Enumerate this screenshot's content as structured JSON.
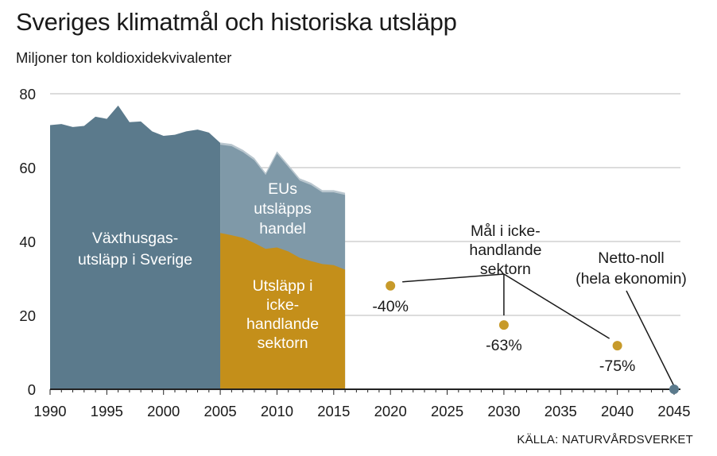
{
  "title": "Sveriges klimatmål och historiska utsläpp",
  "subtitle": "Miljoner ton koldioxidekvivalenter",
  "source": "KÄLLA: NATURVÅRDSVERKET",
  "chart_data": {
    "type": "area",
    "ylim": [
      0,
      80
    ],
    "xlim": [
      1990,
      2045
    ],
    "grid": true,
    "y_ticks": [
      0,
      20,
      40,
      60,
      80
    ],
    "x_ticks": [
      1990,
      1995,
      2000,
      2005,
      2010,
      2015,
      2020,
      2025,
      2030,
      2035,
      2040,
      2045
    ],
    "colors": {
      "total": "#5b7a8c",
      "ets": "#7f99a8",
      "ets_edge": "#b9c6ce",
      "non_ets": "#c48f1a",
      "target": "#c79a2a",
      "net_zero": "#5b7a8c",
      "grid": "#c8c8c8",
      "axis": "#222222"
    },
    "series": [
      {
        "name": "Växthusgas-utsläpp i Sverige",
        "label_lines": [
          "Växthusgas-",
          "utsläpp i Sverige"
        ],
        "x": [
          1990,
          1991,
          1992,
          1993,
          1994,
          1995,
          1996,
          1997,
          1998,
          1999,
          2000,
          2001,
          2002,
          2003,
          2004,
          2005
        ],
        "values": [
          71.5,
          71.8,
          71.0,
          71.3,
          73.8,
          73.2,
          76.8,
          72.3,
          72.5,
          69.8,
          68.6,
          68.9,
          69.8,
          70.3,
          69.5,
          66.7
        ]
      },
      {
        "name": "EUs utsläppshandel",
        "label_lines": [
          "EUs",
          "utsläpps",
          "handel"
        ],
        "x": [
          2005,
          2006,
          2007,
          2008,
          2009,
          2010,
          2011,
          2012,
          2013,
          2014,
          2015,
          2016
        ],
        "values": [
          66.2,
          65.8,
          64.2,
          62.0,
          58.0,
          63.8,
          60.2,
          56.5,
          55.3,
          53.3,
          53.3,
          52.6
        ]
      },
      {
        "name": "Utsläpp i icke-handlande sektorn",
        "label_lines": [
          "Utsläpp i",
          "icke-",
          "handlande",
          "sektorn"
        ],
        "x": [
          2005,
          2006,
          2007,
          2008,
          2009,
          2010,
          2011,
          2012,
          2013,
          2014,
          2015,
          2016
        ],
        "values": [
          42.3,
          41.7,
          41.0,
          39.6,
          38.0,
          38.4,
          37.3,
          35.6,
          34.7,
          33.9,
          33.6,
          32.4
        ]
      }
    ],
    "targets": {
      "label_lines": [
        "Mål i icke-",
        "handlande",
        "sektorn"
      ],
      "points": [
        {
          "x": 2020,
          "y": 28.0,
          "label": "-40%"
        },
        {
          "x": 2030,
          "y": 17.4,
          "label": "-63%"
        },
        {
          "x": 2040,
          "y": 11.8,
          "label": "-75%"
        }
      ]
    },
    "net_zero": {
      "label_lines": [
        "Netto-noll",
        "(hela ekonomin)"
      ],
      "x": 2045,
      "y": 0
    }
  }
}
